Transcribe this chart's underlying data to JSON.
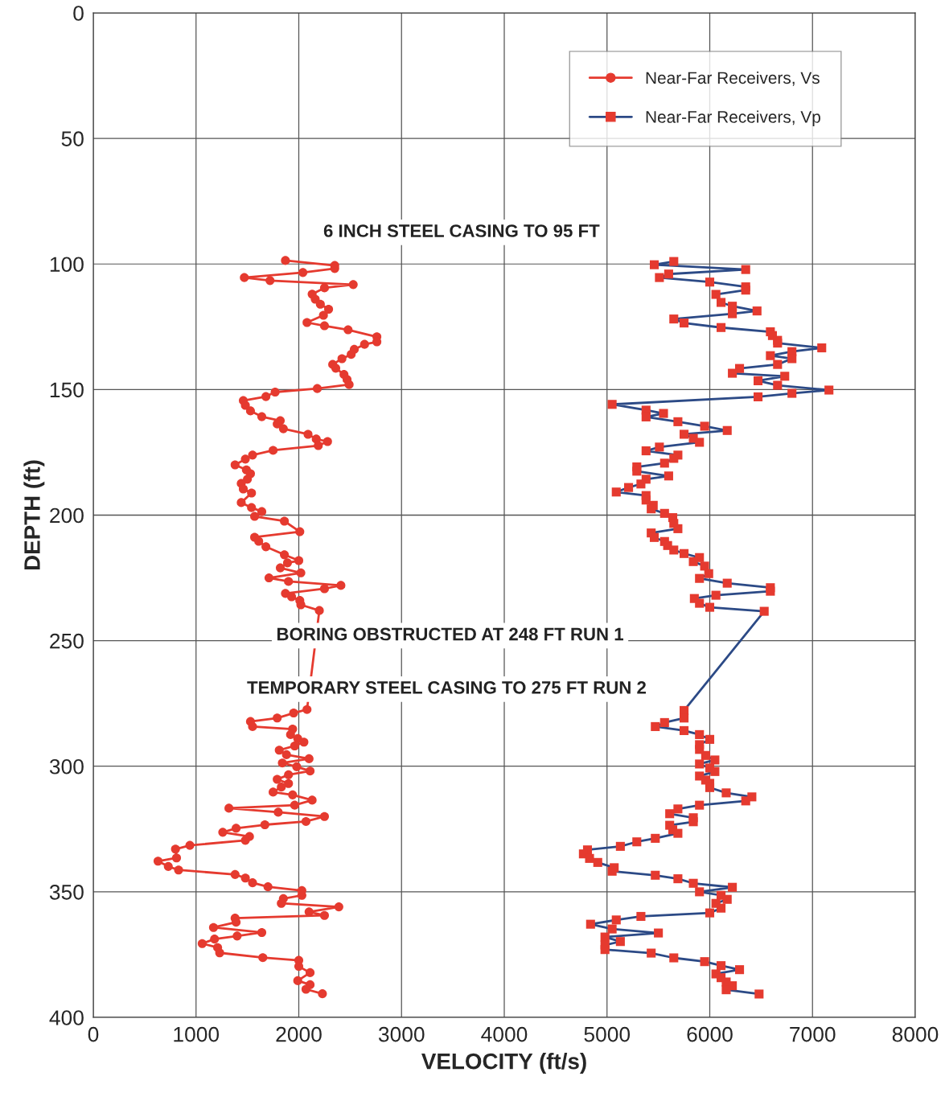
{
  "chart_data": {
    "type": "line",
    "orientation": "horizontal",
    "xlabel": "VELOCITY (ft/s)",
    "ylabel": "DEPTH (ft)",
    "xlim": [
      0,
      8000
    ],
    "xticks": [
      0,
      1000,
      2000,
      3000,
      4000,
      5000,
      6000,
      7000,
      8000
    ],
    "ylim": [
      400,
      0
    ],
    "yticks": [
      0,
      50,
      100,
      150,
      200,
      250,
      300,
      350,
      400
    ],
    "grid": true,
    "legend": "top right",
    "annotations": [
      "6 INCH STEEL CASING TO 95 FT",
      "BORING OBSTRUCTED AT 248 FT RUN 1",
      "TEMPORARY STEEL CASING TO 275 FT RUN 2"
    ],
    "series": [
      {
        "name": "Near-Far Receivers, Vs",
        "color": "#e53a2f",
        "marker": "circle",
        "x": [
          98.6,
          100.6,
          101.8,
          103.4,
          105.4,
          106.6,
          108.2,
          109.5,
          112,
          114,
          116,
          118,
          120.4,
          123.3,
          124.6,
          126.2,
          129,
          131,
          132,
          134,
          136,
          137.7,
          140,
          141.5,
          144,
          146,
          148,
          149.6,
          151,
          152.8,
          154.4,
          156.3,
          158.5,
          160.8,
          162.4,
          163.7,
          165.6,
          167.8,
          169.7,
          170.7,
          172.3,
          174.2,
          176.1,
          177.7,
          180,
          182,
          183.5,
          185.7,
          187.4,
          189.6,
          191.2,
          195,
          197,
          198.6,
          200.5,
          202.4,
          206.6,
          208.8,
          210.4,
          212.6,
          215.8,
          218.1,
          219,
          221,
          223,
          225,
          226.4,
          228,
          229.3,
          231.2,
          232.5,
          234,
          235.7,
          238,
          277.4,
          278.8,
          280.8,
          282.2,
          284.2,
          285.2,
          287.4,
          289,
          290.4,
          291.9,
          293.6,
          295.4,
          297,
          298.7,
          300.2,
          301.9,
          303.4,
          305.2,
          306.9,
          308.3,
          310.3,
          311.4,
          313.5,
          315.5,
          316.7,
          318.3,
          320,
          322,
          323.3,
          324.7,
          326.3,
          328,
          329.5,
          331.5,
          333,
          336.5,
          337.8,
          339.9,
          341.3,
          343.1,
          344.5,
          346.4,
          348,
          349.5,
          351.4,
          352.7,
          354.6,
          356,
          358,
          359.4,
          360.5,
          362.1,
          364.2,
          366.2,
          367.6,
          368.8,
          370.6,
          372.2,
          374.3,
          376.2,
          377.3,
          379.7,
          382.2,
          385.4,
          387,
          388.8,
          390.6
        ],
        "values": [
          1870,
          2350,
          2350,
          2040,
          1470,
          1720,
          2530,
          2250,
          2130,
          2160,
          2210,
          2290,
          2240,
          2080,
          2250,
          2480,
          2760,
          2760,
          2640,
          2540,
          2510,
          2420,
          2330,
          2360,
          2440,
          2470,
          2490,
          2180,
          1770,
          1680,
          1460,
          1480,
          1530,
          1640,
          1820,
          1790,
          1850,
          2090,
          2170,
          2280,
          2190,
          1750,
          1550,
          1480,
          1380,
          1490,
          1530,
          1500,
          1440,
          1460,
          1540,
          1440,
          1540,
          1640,
          1570,
          1860,
          2010,
          1570,
          1610,
          1680,
          1860,
          2000,
          1890,
          1820,
          2020,
          1710,
          1900,
          2410,
          2250,
          1870,
          1930,
          2010,
          2020,
          2200,
          2080,
          1950,
          1790,
          1530,
          1550,
          1940,
          1920,
          1990,
          2050,
          1960,
          1810,
          1880,
          2100,
          1840,
          1980,
          2110,
          1900,
          1790,
          1900,
          1830,
          1750,
          1940,
          2130,
          1960,
          1320,
          1800,
          2250,
          2070,
          1670,
          1390,
          1260,
          1520,
          1480,
          940,
          800,
          810,
          630,
          730,
          830,
          1380,
          1480,
          1550,
          1700,
          2030,
          2030,
          1850,
          1830,
          2390,
          2100,
          2250,
          1380,
          1390,
          1170,
          1640,
          1400,
          1180,
          1060,
          1210,
          1230,
          1650,
          2000,
          2000,
          2110,
          1990,
          2110,
          2070,
          2230
        ]
      },
      {
        "name": "Near-Far Receivers, Vp",
        "color": "#2c4a86",
        "marker": "square",
        "colors": [
          "#e53a2f",
          "#e53a2f",
          "#e53a2f",
          "#e53a2f",
          "#e53a2f",
          "#e53a2f",
          "#e53a2f",
          "#e53a2f",
          "#e53a2f",
          "#e53a2f",
          "#e53a2f",
          "#e53a2f",
          "#e53a2f",
          "#e53a2f",
          "#e53a2f",
          "#e53a2f",
          "#e53a2f",
          "#e53a2f",
          "#e53a2f",
          "#e53a2f",
          "#e53a2f",
          "#e53a2f",
          "#e53a2f",
          "#e53a2f",
          "#e53a2f",
          "#e53a2f",
          "#e53a2f",
          "#e53a2f",
          "#e53a2f",
          "#e53a2f",
          "#e53a2f",
          "#e53a2f",
          "#e53a2f",
          "#e53a2f",
          "#e53a2f",
          "#e53a2f",
          "#e53a2f",
          "#e53a2f",
          "#e53a2f",
          "#e53a2f",
          "#e53a2f",
          "#e53a2f",
          "#e53a2f",
          "#e53a2f",
          "#e53a2f",
          "#e53a2f",
          "#e53a2f",
          "#e53a2f",
          "#e53a2f",
          "#e53a2f",
          "#e53a2f",
          "#e53a2f",
          "#e53a2f",
          "#e53a2f",
          "#e53a2f",
          "#e53a2f",
          "#e53a2f",
          "#e53a2f",
          "#e53a2f",
          "#e53a2f",
          "#e53a2f",
          "#e53a2f",
          "#e53a2f",
          "#e53a2f",
          "#e53a2f",
          "#e53a2f",
          "#e53a2f",
          "#e53a2f",
          "#e53a2f",
          "#e53a2f",
          "#e53a2f",
          "#e53a2f",
          "#e53a2f",
          "#e53a2f",
          "#e53a2f",
          "#e53a2f",
          "#e53a2f",
          "#e53a2f",
          "#e53a2f",
          "#e53a2f",
          "#e53a2f",
          "#e53a2f",
          "#e53a2f",
          "#e53a2f",
          "#e53a2f",
          "#e53a2f",
          "#e53a2f",
          "#e53a2f",
          "#e53a2f",
          "#e53a2f",
          "#e53a2f",
          "#e53a2f",
          "#e53a2f",
          "#e53a2f",
          "#e53a2f",
          "#e53a2f",
          "#e53a2f",
          "#e53a2f",
          "#e53a2f",
          "#e53a2f",
          "#e53a2f",
          "#e53a2f",
          "#e53a2f",
          "#e53a2f",
          "#e53a2f",
          "#e53a2f",
          "#e53a2f",
          "#e53a2f",
          "#e53a2f",
          "#e53a2f",
          "#e53a2f",
          "#e53a2f",
          "#e53a2f",
          "#e53a2f",
          "#e53a2f",
          "#e53a2f",
          "#e53a2f",
          "#e53a2f",
          "#e53a2f",
          "#e53a2f",
          "#e53a2f",
          "#e53a2f",
          "#e53a2f",
          "#e53a2f",
          "#e53a2f",
          "#e53a2f",
          "#e53a2f",
          "#e53a2f",
          "#e53a2f",
          "#e53a2f",
          "#e53a2f",
          "#e53a2f",
          "#e53a2f",
          "#e53a2f",
          "#e53a2f",
          "#e53a2f",
          "#e53a2f",
          "#e53a2f",
          "#e53a2f",
          "#e53a2f",
          "#e53a2f",
          "#e53a2f",
          "#e53a2f",
          "#e53a2f",
          "#e53a2f",
          "#e53a2f",
          "#e53a2f",
          "#e53a2f",
          "#e53a2f",
          "#e53a2f"
        ],
        "x": [
          99,
          100.3,
          102.2,
          104,
          105.4,
          107.2,
          109.1,
          110.4,
          112.1,
          115.3,
          116.8,
          118.7,
          119.8,
          121.9,
          123.5,
          125.3,
          127,
          128.5,
          130.4,
          131.5,
          133.4,
          134.9,
          136.5,
          137.7,
          140,
          141.6,
          143.5,
          144.7,
          146.5,
          148.3,
          150.2,
          151.5,
          152.9,
          155.9,
          158.2,
          159.5,
          160.9,
          162.8,
          164.6,
          166.3,
          167.8,
          169.4,
          171,
          172.9,
          174.4,
          176.1,
          177.4,
          179.3,
          180.8,
          182.5,
          184.4,
          185.7,
          187.6,
          189,
          190.8,
          192.2,
          194,
          196.1,
          197.5,
          199.3,
          201,
          203.3,
          205.4,
          207.1,
          208.9,
          210.5,
          212.1,
          213.9,
          215.3,
          216.9,
          218.5,
          220.3,
          223.3,
          225.2,
          227.1,
          228.9,
          230.3,
          231.9,
          233.2,
          235.1,
          236.7,
          238.3,
          277.8,
          280.8,
          282.6,
          284.2,
          285.8,
          287.4,
          289.3,
          291.4,
          293.3,
          295.7,
          297.5,
          299.1,
          300.7,
          302.1,
          303.9,
          305.5,
          306.8,
          308.5,
          310.6,
          312.2,
          313.8,
          315.5,
          317,
          318.9,
          320.5,
          322.1,
          323.5,
          325.3,
          326.7,
          328.7,
          330.1,
          331.9,
          333.3,
          334.9,
          336.7,
          338.3,
          340.4,
          341.8,
          343.4,
          344.8,
          346.6,
          348.2,
          350,
          351.4,
          353,
          354.6,
          356.5,
          358.4,
          359.8,
          361.2,
          362.9,
          364.8,
          366.4,
          368,
          369.8,
          371.2,
          373,
          374.4,
          376.3,
          377.8,
          379.4,
          381,
          382.7,
          384.2,
          385.9,
          387.4,
          389,
          390.7
        ],
        "values": [
          5650,
          5460,
          6350,
          5600,
          5510,
          6000,
          6350,
          6350,
          6060,
          6110,
          6220,
          6460,
          6220,
          5650,
          5750,
          6110,
          6590,
          6610,
          6660,
          6660,
          7090,
          6800,
          6590,
          6800,
          6660,
          6290,
          6220,
          6730,
          6470,
          6660,
          7160,
          6800,
          6470,
          5050,
          5380,
          5550,
          5380,
          5690,
          5950,
          6170,
          5750,
          5840,
          5900,
          5510,
          5380,
          5690,
          5650,
          5560,
          5290,
          5290,
          5600,
          5380,
          5330,
          5210,
          5090,
          5380,
          5380,
          5450,
          5430,
          5560,
          5640,
          5650,
          5690,
          5430,
          5460,
          5560,
          5590,
          5650,
          5750,
          5900,
          5840,
          5950,
          5990,
          5900,
          6170,
          6590,
          6590,
          6060,
          5850,
          5900,
          6000,
          6530,
          5750,
          5750,
          5560,
          5470,
          5750,
          5900,
          6000,
          5900,
          5900,
          5960,
          6050,
          5900,
          6000,
          6050,
          5900,
          5960,
          6000,
          6000,
          6160,
          6410,
          6350,
          5900,
          5690,
          5610,
          5840,
          5840,
          5610,
          5640,
          5690,
          5470,
          5290,
          5130,
          4810,
          4770,
          4830,
          4910,
          5070,
          5050,
          5470,
          5690,
          5840,
          6220,
          5900,
          6110,
          6170,
          6060,
          6110,
          6000,
          5330,
          5090,
          4840,
          5050,
          5500,
          4980,
          5130,
          4980,
          4980,
          5430,
          5650,
          5950,
          6110,
          6290,
          6060,
          6110,
          6160,
          6220,
          6160,
          6480
        ]
      }
    ]
  }
}
